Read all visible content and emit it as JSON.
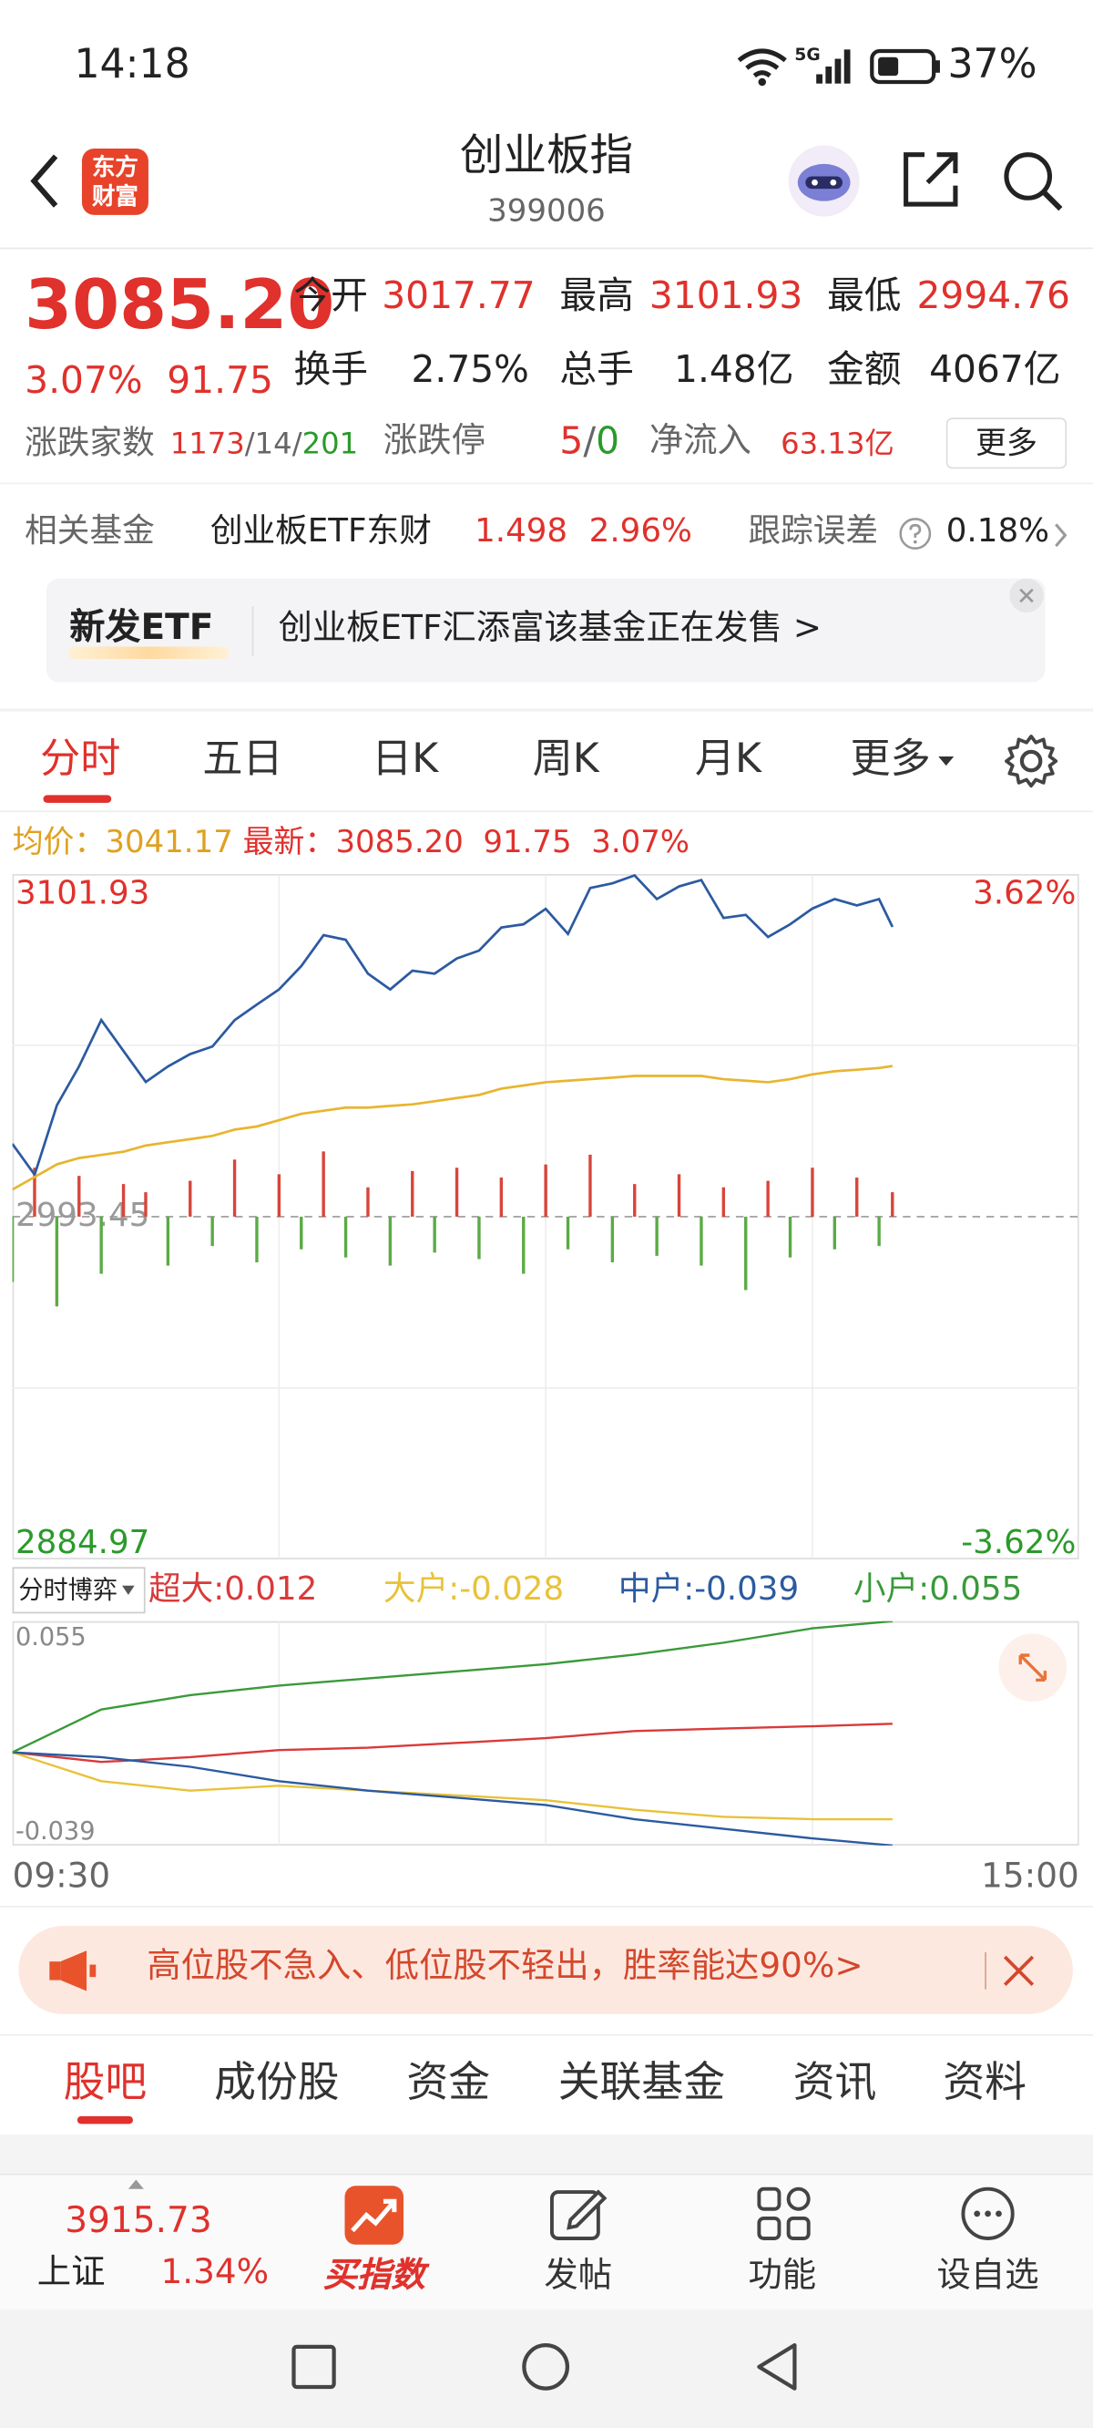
{
  "status_bar": {
    "time": "14:18",
    "network": "5G",
    "battery": "37%"
  },
  "header": {
    "logo": "东方财富",
    "title": "创业板指",
    "code": "399006"
  },
  "quote": {
    "price": "3085.20",
    "change_pct": "3.07%",
    "change": "91.75",
    "stats": [
      {
        "label": "今开",
        "value": "3017.77"
      },
      {
        "label": "最高",
        "value": "3101.93"
      },
      {
        "label": "最低",
        "value": "2994.76"
      },
      {
        "label": "换手",
        "value": "2.75%"
      },
      {
        "label": "总手",
        "value": "1.48亿"
      },
      {
        "label": "金额",
        "value": "4067亿"
      }
    ],
    "breadth_label": "涨跌家数",
    "up": "1173",
    "flat": "14",
    "down": "201",
    "sep": "/",
    "limit_label": "涨跌停",
    "limit_up": "5",
    "limit_down": "0",
    "inflow_label": "净流入",
    "inflow": "63.13亿",
    "more": "更多"
  },
  "fund": {
    "label": "相关基金",
    "name": "创业板ETF东财",
    "price": "1.498",
    "pct": "2.96%",
    "error_label": "跟踪误差",
    "error": "0.18%"
  },
  "banner": {
    "tag": "新发ETF",
    "text": "创业板ETF汇添富该基金正在发售 >"
  },
  "chart_tabs": [
    "分时",
    "五日",
    "日K",
    "周K",
    "月K",
    "更多"
  ],
  "chart_data": [
    {
      "type": "line",
      "legend": [
        {
          "label": "均价：",
          "value": "3041.17"
        },
        {
          "label": "最新：",
          "value": "3085.20"
        },
        {
          "value": "91.75"
        },
        {
          "value": "3.07%"
        }
      ],
      "x": [
        "09:30",
        "09:35",
        "09:40",
        "09:45",
        "09:50",
        "09:55",
        "10:00",
        "10:05",
        "10:10",
        "10:15",
        "10:20",
        "10:25",
        "10:30",
        "10:35",
        "10:40",
        "10:45",
        "10:50",
        "10:55",
        "11:00",
        "11:05",
        "11:10",
        "11:15",
        "11:20",
        "11:25",
        "11:30",
        "13:05",
        "13:10",
        "13:15",
        "13:20",
        "13:25",
        "13:30",
        "13:35",
        "13:40",
        "13:45",
        "13:50",
        "13:55",
        "14:00",
        "14:05",
        "14:10",
        "14:15",
        "14:18"
      ],
      "series": [
        {
          "color": "#2c5aa0",
          "values": [
            3016.5,
            3006.7,
            3028.7,
            3041,
            3055.7,
            3045.9,
            3036.1,
            3041,
            3044.9,
            3047.3,
            3055.7,
            3060.6,
            3065.4,
            3072.8,
            3082.6,
            3081.1,
            3070.4,
            3065.4,
            3071.3,
            3070.4,
            3075.2,
            3077.7,
            3085,
            3086,
            3090.9,
            3083,
            3097.5,
            3099,
            3101.5,
            3094,
            3098,
            3100,
            3088,
            3089,
            3082,
            3086,
            3091,
            3094,
            3092,
            3094,
            3085.2
          ]
        },
        {
          "color": "#e8b530",
          "values": [
            3002,
            3006,
            3010,
            3012,
            3013,
            3014,
            3016,
            3017,
            3018,
            3019,
            3021,
            3022,
            3024,
            3026,
            3027,
            3028,
            3028,
            3028.5,
            3029,
            3030,
            3031,
            3032,
            3034,
            3035,
            3036,
            3036.5,
            3037,
            3037.5,
            3038,
            3038,
            3038,
            3038,
            3037,
            3036.5,
            3036,
            3037,
            3038.5,
            3039.5,
            3040,
            3040.5,
            3041.17
          ]
        }
      ],
      "volume": [
        -40,
        30,
        -55,
        25,
        -35,
        20,
        15,
        -30,
        22,
        -18,
        35,
        -28,
        26,
        -20,
        40,
        -25,
        18,
        -30,
        28,
        -22,
        30,
        -26,
        24,
        -35,
        32,
        -20,
        38,
        -28,
        20,
        -24,
        26,
        -30,
        18,
        -45,
        22,
        -25,
        30,
        -20,
        24,
        -18,
        15
      ],
      "ylim": [
        2884.97,
        3101.93
      ],
      "yticks": [
        3101.93,
        2993.45,
        2884.97
      ],
      "pct_labels": [
        "3.62%",
        "-3.62%"
      ],
      "time_labels": [
        "09:30",
        "15:00"
      ]
    },
    {
      "type": "line",
      "selector": "分时博弈",
      "x": [
        "09:30",
        "09:50",
        "10:10",
        "10:30",
        "10:50",
        "11:10",
        "11:30",
        "13:20",
        "13:40",
        "14:00",
        "14:18"
      ],
      "series": [
        {
          "name": "超大:",
          "color": "#d93a3a",
          "values": [
            0,
            -0.004,
            -0.002,
            0.001,
            0.002,
            0.004,
            0.006,
            0.009,
            0.01,
            0.011,
            0.012
          ]
        },
        {
          "name": "大户:",
          "color": "#e8c23a",
          "values": [
            0,
            -0.012,
            -0.016,
            -0.014,
            -0.016,
            -0.018,
            -0.02,
            -0.024,
            -0.027,
            -0.028,
            -0.028
          ]
        },
        {
          "name": "中户:",
          "color": "#2c5aa0",
          "values": [
            0,
            -0.002,
            -0.006,
            -0.012,
            -0.016,
            -0.019,
            -0.022,
            -0.028,
            -0.032,
            -0.036,
            -0.039
          ]
        },
        {
          "name": "小户:",
          "color": "#3a9a3a",
          "values": [
            0,
            0.018,
            0.024,
            0.028,
            0.031,
            0.034,
            0.037,
            0.041,
            0.046,
            0.052,
            0.055
          ]
        }
      ],
      "ylim": [
        -0.039,
        0.055
      ],
      "yticks": [
        0.055,
        -0.039
      ]
    }
  ],
  "ad": {
    "text": "高位股不急入、低位股不轻出，胜率能达90%>"
  },
  "section_tabs": [
    "股吧",
    "成份股",
    "资金",
    "关联基金",
    "资讯",
    "资料"
  ],
  "bottom_bar": {
    "index_value": "3915.73",
    "index_name": "上证",
    "index_pct": "1.34%",
    "items": [
      "买指数",
      "发帖",
      "功能",
      "设自选"
    ]
  }
}
